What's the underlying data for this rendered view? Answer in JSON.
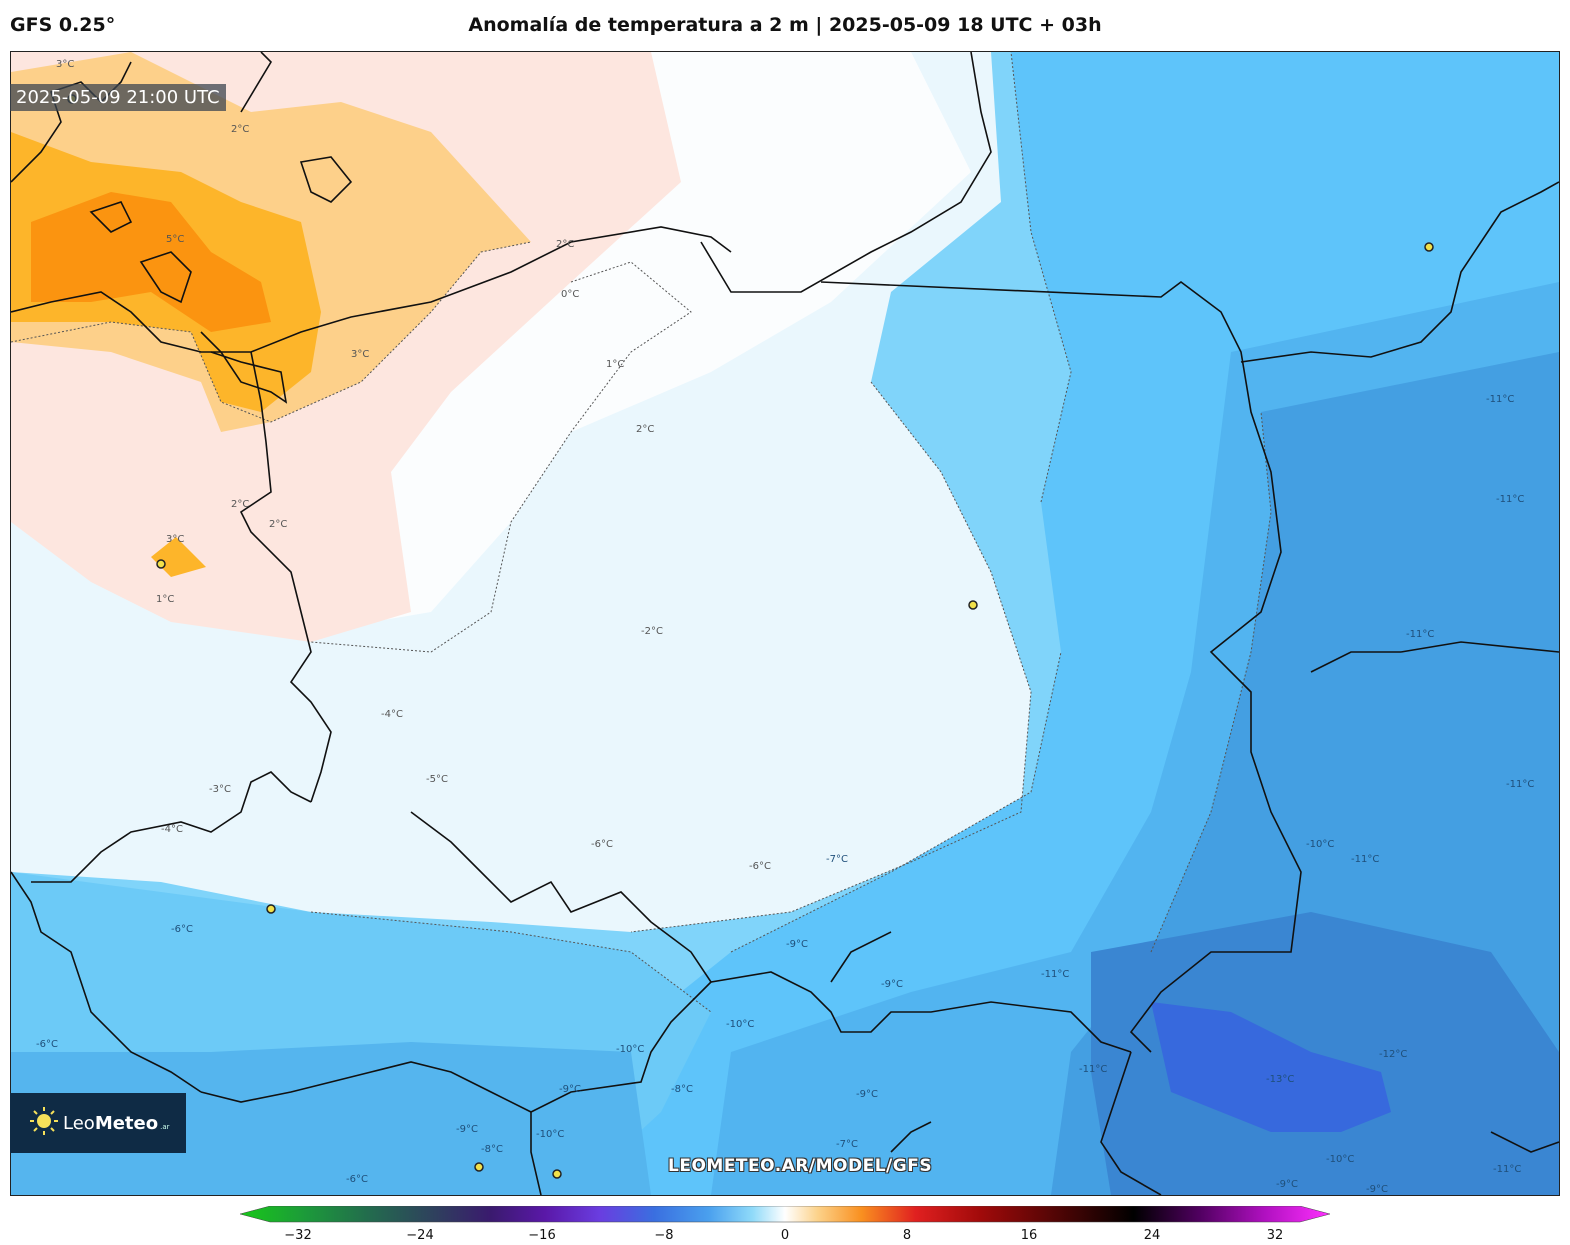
{
  "header": {
    "model": "GFS 0.25°",
    "title": "Anomalía de temperatura a 2 m | 2025-05-09 18 UTC + 03h"
  },
  "map": {
    "valid_time": "2025-05-09 21:00 UTC",
    "watermark_url": "LEOMETEO.AR/MODEL/GFS",
    "logo_text_light": "Leo",
    "logo_text_bold": "Meteo",
    "logo_suffix": ".ar",
    "contour_labels": [
      "3°C",
      "2°C",
      "5°C",
      "3°C",
      "2°C",
      "0°C",
      "1°C",
      "2°C",
      "2°C",
      "2°C",
      "3°C",
      "1°C",
      "-2°C",
      "-4°C",
      "-3°C",
      "-5°C",
      "-4°C",
      "-6°C",
      "-6°C",
      "-7°C",
      "-6°C",
      "-9°C",
      "-11°C",
      "-11°C",
      "-11°C",
      "-11°C",
      "-10°C",
      "-11°C",
      "-11°C",
      "-9°C",
      "-10°C",
      "-10°C",
      "-9°C",
      "-8°C",
      "-9°C",
      "-10°C",
      "-9°C",
      "-8°C",
      "-7°C",
      "-6°C",
      "-11°C",
      "-13°C",
      "-12°C",
      "-10°C",
      "-9°C",
      "-11°C",
      "-9°C",
      "-6°C"
    ]
  },
  "colorbar": {
    "ticks": [
      "−32",
      "−24",
      "−16",
      "−8",
      "0",
      "8",
      "16",
      "24",
      "32"
    ],
    "min": -32,
    "max": 32
  }
}
